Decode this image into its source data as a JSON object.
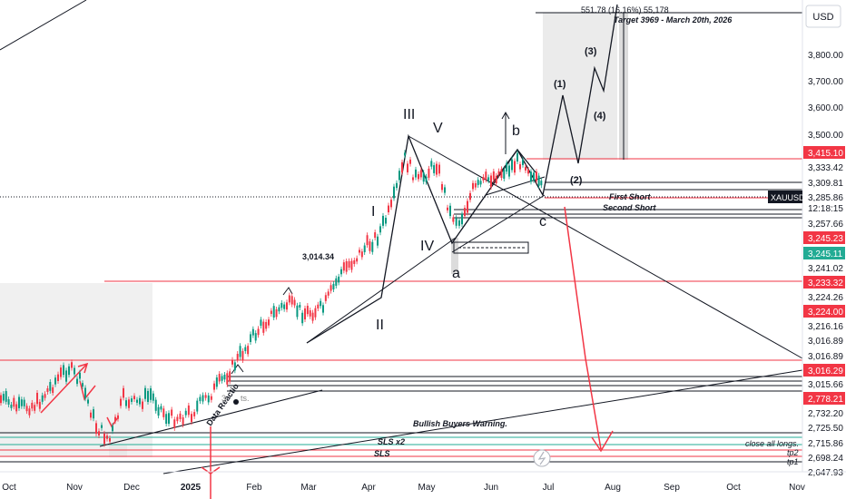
{
  "currency": "USD",
  "chart_data": {
    "type": "candlestick",
    "symbol": "XAUUSD",
    "x_ticks": [
      "Oct",
      "Nov",
      "Dec",
      "2025",
      "Feb",
      "Mar",
      "Apr",
      "May",
      "Jun",
      "Jul",
      "Aug",
      "Sep",
      "Oct",
      "Nov"
    ],
    "y_ticks": [
      "3,800.00",
      "3,700.00",
      "3,600.00",
      "3,500.00"
    ],
    "price_badges": [
      {
        "label": "3,415.10",
        "color": "#f23645"
      },
      {
        "label": "3,333.42",
        "color": "#ffffff"
      },
      {
        "label": "3,309.81",
        "color": "#ffffff"
      },
      {
        "label": "XAUUSD",
        "color": "#131722"
      },
      {
        "label": "3,285.86",
        "color": "#ffffff"
      },
      {
        "label": "12:18:15",
        "color": "#ffffff"
      },
      {
        "label": "3,257.66",
        "color": "#ffffff"
      },
      {
        "label": "3,245.23",
        "color": "#f23645"
      },
      {
        "label": "3,245.11",
        "color": "#22ab94"
      },
      {
        "label": "3,241.02",
        "color": "#ffffff"
      },
      {
        "label": "3,233.32",
        "color": "#f23645"
      },
      {
        "label": "3,224.26",
        "color": "#ffffff"
      },
      {
        "label": "3,224.00",
        "color": "#f23645"
      },
      {
        "label": "3,216.16",
        "color": "#ffffff"
      },
      {
        "label": "3,016.89",
        "color": "#ffffff"
      },
      {
        "label": "3,016.89",
        "color": "#ffffff"
      },
      {
        "label": "3,016.29",
        "color": "#f23645"
      },
      {
        "label": "3,015.66",
        "color": "#ffffff"
      },
      {
        "label": "2,778.21",
        "color": "#f23645"
      },
      {
        "label": "2,732.20",
        "color": "#ffffff"
      },
      {
        "label": "2,725.50",
        "color": "#ffffff"
      },
      {
        "label": "2,715.86",
        "color": "#ffffff"
      },
      {
        "label": "2,698.24",
        "color": "#ffffff"
      },
      {
        "label": "2,647.93",
        "color": "#ffffff"
      }
    ],
    "annotations": {
      "target": "Target 3969 - March 20th, 2026",
      "measure": "551.78 (16.16%) 55,178",
      "first_short": "First Short",
      "second_short": "Second Short",
      "bullish_warning": "Bullish Buyers Warning.",
      "sls_x2": "SLS x2",
      "sls": "SLS",
      "close_all": "close all longs.",
      "tp2": "tp2",
      "tp1": "tp1",
      "level_3014": "3,014.34",
      "slanted_1": "Data Reactio",
      "slanted_2": "3",
      "slanted_3": "ts."
    },
    "waves": {
      "III": "III",
      "V": "V",
      "I": "I",
      "IV": "IV",
      "II": "II",
      "a": "a",
      "b": "b",
      "c": "c",
      "w1": "(1)",
      "w2": "(2)",
      "w3": "(3)",
      "w4": "(4)"
    },
    "series": {
      "close_approx": [
        2660,
        2740,
        2620,
        2650,
        2630,
        2640,
        2750,
        2860,
        2900,
        2950,
        3080,
        3000,
        3120,
        3350,
        3250,
        3300,
        3380,
        3300,
        3290,
        3360,
        3320,
        3285
      ]
    }
  }
}
